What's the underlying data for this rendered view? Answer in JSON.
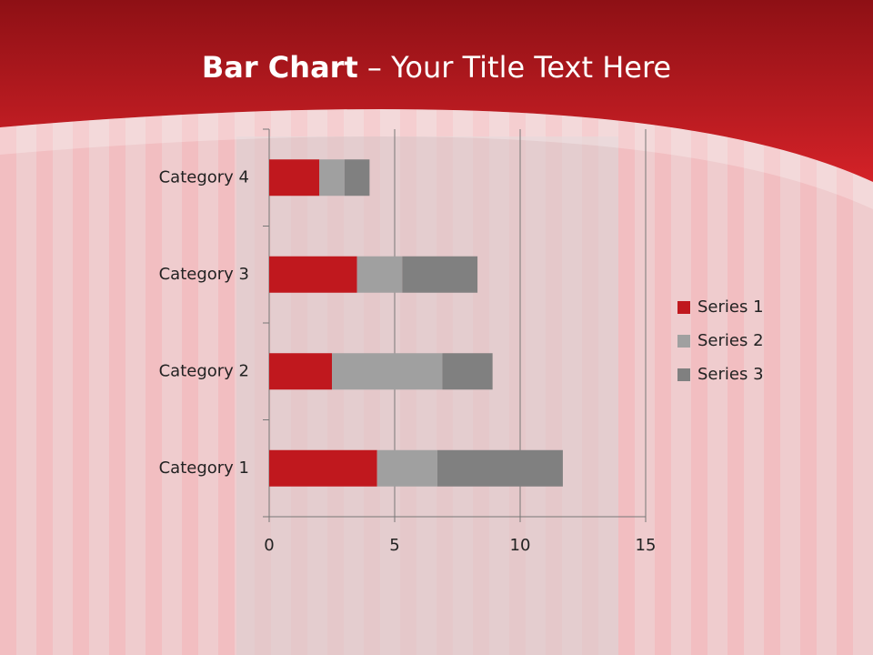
{
  "chart_data": {
    "type": "bar",
    "orientation": "horizontal",
    "stacked": true,
    "title": [
      "Bar Chart",
      "– Your Title Text Here"
    ],
    "categories": [
      "Category 1",
      "Category 2",
      "Category 3",
      "Category 4"
    ],
    "series": [
      {
        "name": "Series 1",
        "color": "#c0181e",
        "values": [
          4.3,
          2.5,
          3.5,
          2
        ]
      },
      {
        "name": "Series 2",
        "color": "#a0a0a0",
        "values": [
          2.4,
          4.4,
          1.8,
          1
        ]
      },
      {
        "name": "Series 3",
        "color": "#808080",
        "values": [
          5,
          2,
          3,
          1
        ]
      }
    ],
    "xlim": [
      0,
      15
    ],
    "xticks": [
      0,
      5,
      10,
      15
    ],
    "grid": true,
    "legend": "right"
  }
}
